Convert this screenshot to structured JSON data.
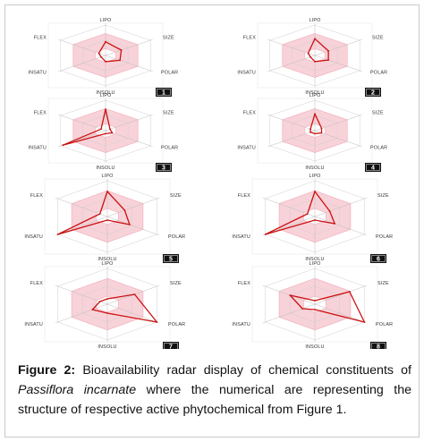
{
  "chart_data": [
    {
      "type": "radar",
      "panel": "1",
      "axes": [
        "LIPO",
        "SIZE",
        "POLAR",
        "INSOLU",
        "INSATU",
        "FLEX"
      ],
      "values": [
        0.45,
        0.35,
        0.32,
        0.2,
        0.1,
        0.15
      ],
      "color": "#cc1111",
      "range_color": "#f6c3cc"
    },
    {
      "type": "radar",
      "panel": "2",
      "axes": [
        "LIPO",
        "SIZE",
        "POLAR",
        "INSOLU",
        "INSATU",
        "FLEX"
      ],
      "values": [
        0.55,
        0.3,
        0.3,
        0.2,
        0.1,
        0.15
      ],
      "color": "#cc1111",
      "range_color": "#f6c3cc"
    },
    {
      "type": "radar",
      "panel": "3",
      "axes": [
        "LIPO",
        "SIZE",
        "POLAR",
        "INSOLU",
        "INSATU",
        "FLEX"
      ],
      "values": [
        0.7,
        0.1,
        0.15,
        0.1,
        0.95,
        0.1
      ],
      "color": "#cc1111",
      "range_color": "#f6c3cc"
    },
    {
      "type": "radar",
      "panel": "4",
      "axes": [
        "LIPO",
        "SIZE",
        "POLAR",
        "INSOLU",
        "INSATU",
        "FLEX"
      ],
      "values": [
        0.55,
        0.15,
        0.15,
        0.1,
        0.1,
        0.1
      ],
      "color": "#cc1111",
      "range_color": "#f6c3cc"
    },
    {
      "type": "radar",
      "panel": "5",
      "axes": [
        "LIPO",
        "SIZE",
        "POLAR",
        "INSOLU",
        "INSATU",
        "FLEX"
      ],
      "values": [
        0.7,
        0.35,
        0.45,
        0.1,
        1.0,
        0.15
      ],
      "color": "#cc1111",
      "range_color": "#f6c3cc"
    },
    {
      "type": "radar",
      "panel": "6",
      "axes": [
        "LIPO",
        "SIZE",
        "POLAR",
        "INSOLU",
        "INSATU",
        "FLEX"
      ],
      "values": [
        0.7,
        0.3,
        0.4,
        0.1,
        1.0,
        0.15
      ],
      "color": "#cc1111",
      "range_color": "#f6c3cc"
    },
    {
      "type": "radar",
      "panel": "7",
      "axes": [
        "LIPO",
        "SIZE",
        "POLAR",
        "INSOLU",
        "INSATU",
        "FLEX"
      ],
      "values": [
        0.15,
        0.55,
        1.0,
        0.25,
        0.3,
        0.15
      ],
      "color": "#cc1111",
      "range_color": "#f6c3cc"
    },
    {
      "type": "radar",
      "panel": "8",
      "axes": [
        "LIPO",
        "SIZE",
        "POLAR",
        "INSOLU",
        "INSATU",
        "FLEX"
      ],
      "values": [
        0.1,
        0.7,
        1.0,
        0.15,
        0.25,
        0.5
      ],
      "color": "#cc1111",
      "range_color": "#f6c3cc"
    }
  ],
  "caption": {
    "label": "Figure 2:",
    "text_before": " Bioavailability radar display of chemical constituents of ",
    "species": "Passiflora incarnate",
    "text_after": " where the numerical are representing the structure of respective active phytochemical from Figure 1."
  }
}
